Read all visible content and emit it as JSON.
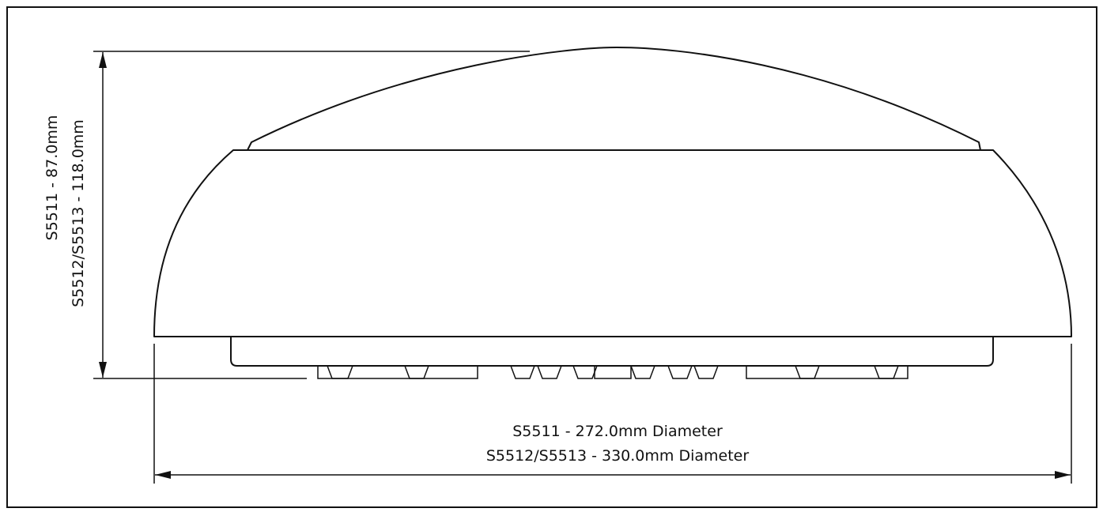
{
  "dimensions": {
    "height": {
      "line1": "S5511 - 87.0mm",
      "line2": "S5512/S5513 - 118.0mm"
    },
    "diameter": {
      "line1": "S5511 - 272.0mm Diameter",
      "line2": "S5512/S5513 - 330.0mm Diameter"
    }
  }
}
